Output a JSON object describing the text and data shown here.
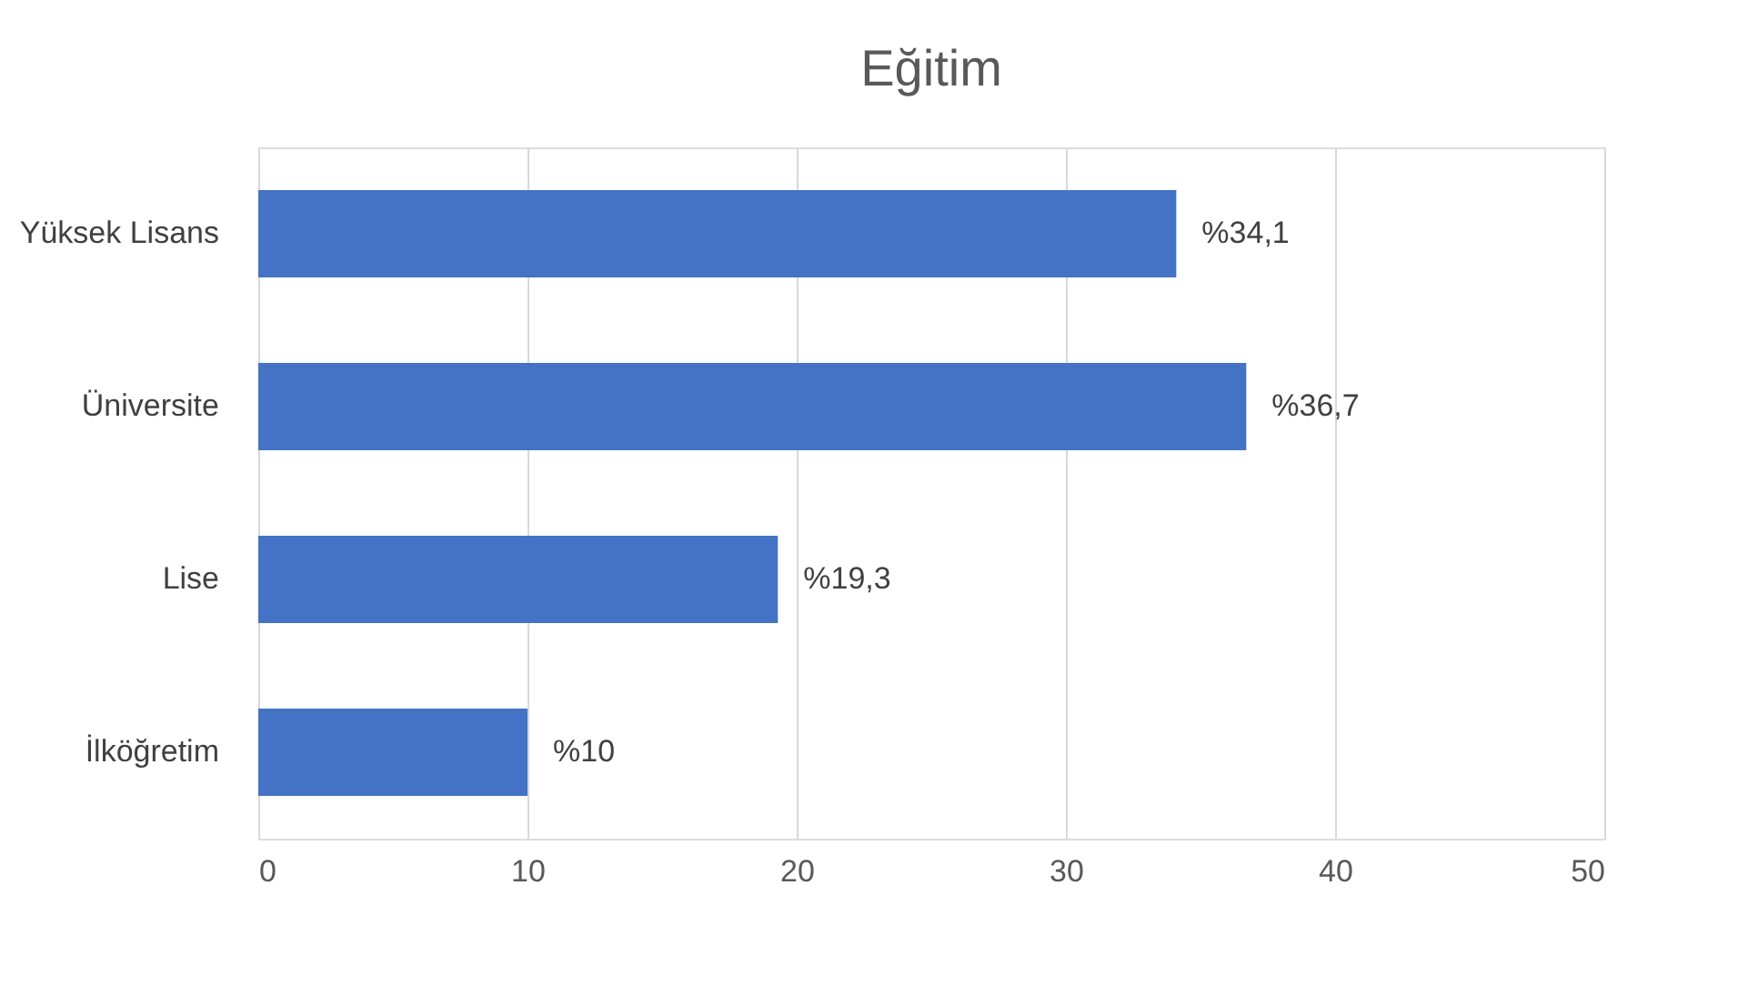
{
  "chart_data": {
    "type": "bar",
    "orientation": "horizontal",
    "title": "Eğitim",
    "categories": [
      "Yüksek Lisans",
      "Üniversite",
      "Lise",
      "İlköğretim"
    ],
    "values": [
      34.1,
      36.7,
      19.3,
      10
    ],
    "value_labels": [
      "%34,1",
      "%36,7",
      "%19,3",
      "%10"
    ],
    "color": "#4472c4",
    "xlim": [
      0,
      50
    ],
    "xticks": [
      0,
      10,
      20,
      30,
      40,
      50
    ],
    "grid": "x"
  }
}
